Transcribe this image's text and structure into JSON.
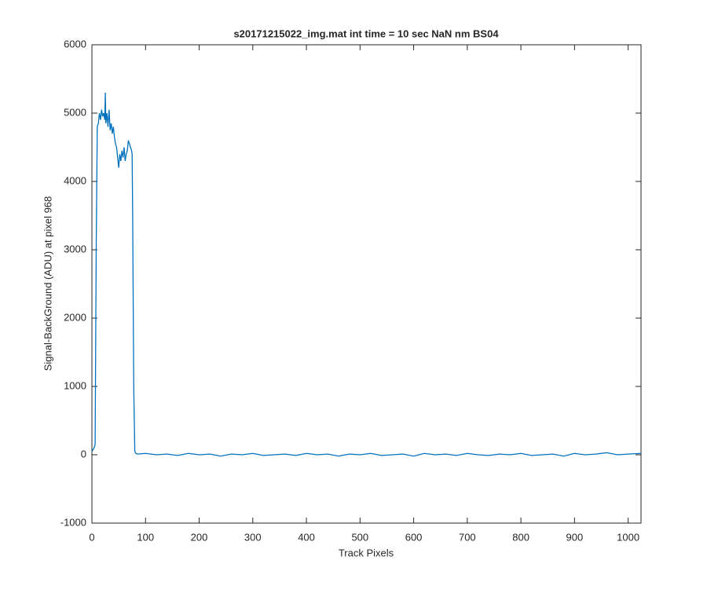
{
  "chart_data": {
    "type": "line",
    "title": "s20171215022_img.mat int time = 10 sec  NaN nm BS04",
    "x_label": "Track Pixels",
    "y_label": "Signal-BackGround (ADU) at pixel 968",
    "xlim": [
      0,
      1024
    ],
    "xticks": [
      0,
      100,
      200,
      300,
      400,
      500,
      600,
      700,
      800,
      900,
      1000
    ],
    "ylim": [
      -1000,
      6000
    ],
    "yticks": [
      -1000,
      0,
      1000,
      2000,
      3000,
      4000,
      5000,
      6000
    ],
    "series": [
      {
        "color": "#0072bd",
        "x": [
          0,
          4,
          6,
          8,
          10,
          12,
          14,
          16,
          18,
          20,
          22,
          24,
          25,
          26,
          28,
          30,
          32,
          34,
          36,
          38,
          40,
          42,
          44,
          46,
          48,
          50,
          52,
          54,
          56,
          58,
          60,
          62,
          64,
          66,
          68,
          70,
          72,
          74,
          75,
          76,
          78,
          80,
          82,
          85,
          100,
          120,
          140,
          160,
          180,
          200,
          220,
          240,
          260,
          280,
          300,
          320,
          340,
          360,
          380,
          400,
          420,
          440,
          460,
          480,
          500,
          520,
          540,
          560,
          580,
          600,
          620,
          640,
          660,
          680,
          700,
          720,
          740,
          760,
          780,
          800,
          820,
          840,
          860,
          880,
          900,
          920,
          940,
          960,
          980,
          1000,
          1024
        ],
        "values": [
          50,
          100,
          150,
          3000,
          4800,
          4850,
          5000,
          4900,
          5050,
          4950,
          5000,
          4900,
          5300,
          4850,
          5000,
          4800,
          5050,
          4750,
          4850,
          4700,
          4800,
          4650,
          4550,
          4500,
          4350,
          4200,
          4400,
          4300,
          4450,
          4350,
          4500,
          4300,
          4400,
          4450,
          4600,
          4550,
          4500,
          4450,
          4400,
          3500,
          1000,
          50,
          20,
          10,
          20,
          0,
          10,
          -10,
          20,
          0,
          10,
          -20,
          10,
          0,
          20,
          -10,
          0,
          10,
          -10,
          20,
          0,
          10,
          -20,
          10,
          0,
          20,
          -10,
          0,
          10,
          -20,
          20,
          0,
          10,
          -10,
          20,
          0,
          -10,
          10,
          0,
          20,
          -10,
          0,
          10,
          -20,
          20,
          0,
          10,
          30,
          0,
          10,
          20
        ]
      }
    ]
  }
}
